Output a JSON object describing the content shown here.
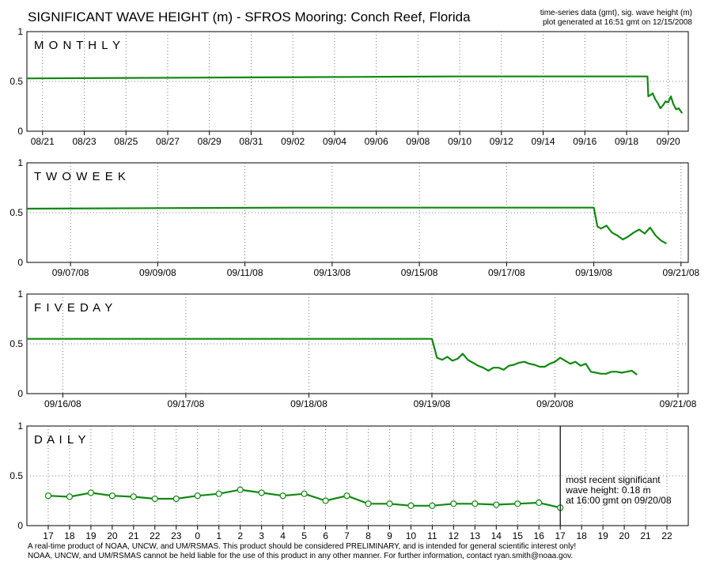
{
  "title": "SIGNIFICANT WAVE HEIGHT (m)  -  SFROS Mooring: Conch Reef, Florida",
  "meta": {
    "line1": "time-series data (gmt), sig. wave height (m)",
    "line2": "plot generated at 16:51 gmt on 12/15/2008"
  },
  "footer": {
    "line1": "A real-time product of NOAA, UNCW, and UM/RSMAS. This product should be considered PRELIMINARY, and is intended for general scientific interest only!",
    "line2": "NOAA, UNCW, and UM/RSMAS cannot be held liable for the use of this product in any other manner.  For further information, contact ryan.smith@noaa.gov."
  },
  "colors": {
    "series": "#118811",
    "grid": "#555555",
    "axis": "#000000"
  },
  "chart_data": [
    {
      "type": "line",
      "label": "MONTHLY",
      "ylim": [
        0,
        1
      ],
      "yticks": [
        0,
        0.5,
        1
      ],
      "xlim": [
        "08/20/08 06:00",
        "09/20/08 23:00"
      ],
      "xtick_labels": [
        "08/21",
        "08/23",
        "08/25",
        "08/27",
        "08/29",
        "08/31",
        "09/02",
        "09/04",
        "09/06",
        "09/08",
        "09/10",
        "09/12",
        "09/14",
        "09/16",
        "09/18",
        "09/20"
      ],
      "grid": true,
      "x": [
        "08/20/08 06:00",
        "08/25/08 00:00",
        "08/30/08 00:00",
        "09/05/08 00:00",
        "09/10/08 00:00",
        "09/15/08 00:00",
        "09/19/08 00:00",
        "09/19/08 01:00",
        "09/19/08 03:00",
        "09/19/08 06:00",
        "09/19/08 09:00",
        "09/19/08 12:00",
        "09/19/08 15:00",
        "09/19/08 18:00",
        "09/19/08 21:00",
        "09/20/08 00:00",
        "09/20/08 03:00",
        "09/20/08 06:00",
        "09/20/08 09:00",
        "09/20/08 12:00",
        "09/20/08 16:00"
      ],
      "y": [
        0.53,
        0.535,
        0.54,
        0.545,
        0.55,
        0.55,
        0.55,
        0.35,
        0.36,
        0.38,
        0.32,
        0.28,
        0.23,
        0.26,
        0.3,
        0.29,
        0.35,
        0.27,
        0.22,
        0.23,
        0.18
      ]
    },
    {
      "type": "line",
      "label": "TWO WEEK",
      "ylim": [
        0,
        1
      ],
      "yticks": [
        0,
        0.5,
        1
      ],
      "xlim": [
        "09/06/08 00:00",
        "09/21/08 04:00"
      ],
      "xtick_labels": [
        "09/07/08",
        "09/09/08",
        "09/11/08",
        "09/13/08",
        "09/15/08",
        "09/17/08",
        "09/19/08",
        "09/21/08"
      ],
      "grid": true,
      "x": [
        "09/06/08 00:00",
        "09/09/08 00:00",
        "09/12/08 00:00",
        "09/15/08 00:00",
        "09/18/08 00:00",
        "09/19/08 00:00",
        "09/19/08 02:00",
        "09/19/08 04:00",
        "09/19/08 07:00",
        "09/19/08 10:00",
        "09/19/08 13:00",
        "09/19/08 16:00",
        "09/19/08 19:00",
        "09/19/08 22:00",
        "09/20/08 01:00",
        "09/20/08 04:00",
        "09/20/08 07:00",
        "09/20/08 10:00",
        "09/20/08 13:00",
        "09/20/08 16:00"
      ],
      "y": [
        0.54,
        0.545,
        0.55,
        0.55,
        0.55,
        0.55,
        0.36,
        0.34,
        0.37,
        0.3,
        0.27,
        0.23,
        0.26,
        0.3,
        0.33,
        0.29,
        0.35,
        0.27,
        0.22,
        0.19
      ]
    },
    {
      "type": "line",
      "label": "FIVE DAY",
      "ylim": [
        0,
        1
      ],
      "yticks": [
        0,
        0.5,
        1
      ],
      "xlim": [
        "09/15/08 17:00",
        "09/21/08 02:00"
      ],
      "xtick_labels": [
        "09/16/08",
        "09/17/08",
        "09/18/08",
        "09/19/08",
        "09/20/08",
        "09/21/08"
      ],
      "grid": true,
      "x": [
        "09/15/08 17:00",
        "09/17/08 00:00",
        "09/18/08 00:00",
        "09/19/08 00:00",
        "09/19/08 01:00",
        "09/19/08 02:00",
        "09/19/08 03:00",
        "09/19/08 04:00",
        "09/19/08 05:00",
        "09/19/08 06:00",
        "09/19/08 07:00",
        "09/19/08 08:00",
        "09/19/08 09:00",
        "09/19/08 10:00",
        "09/19/08 11:00",
        "09/19/08 12:00",
        "09/19/08 13:00",
        "09/19/08 14:00",
        "09/19/08 15:00",
        "09/19/08 16:00",
        "09/19/08 17:00",
        "09/19/08 18:00",
        "09/19/08 19:00",
        "09/19/08 20:00",
        "09/19/08 21:00",
        "09/19/08 22:00",
        "09/19/08 23:00",
        "09/20/08 00:00",
        "09/20/08 01:00",
        "09/20/08 02:00",
        "09/20/08 03:00",
        "09/20/08 04:00",
        "09/20/08 05:00",
        "09/20/08 06:00",
        "09/20/08 07:00",
        "09/20/08 08:00",
        "09/20/08 09:00",
        "09/20/08 10:00",
        "09/20/08 11:00",
        "09/20/08 12:00",
        "09/20/08 13:00",
        "09/20/08 14:00",
        "09/20/08 15:00",
        "09/20/08 16:00"
      ],
      "y": [
        0.55,
        0.55,
        0.55,
        0.55,
        0.36,
        0.34,
        0.37,
        0.33,
        0.35,
        0.4,
        0.34,
        0.31,
        0.28,
        0.26,
        0.23,
        0.26,
        0.26,
        0.24,
        0.28,
        0.29,
        0.31,
        0.32,
        0.3,
        0.29,
        0.27,
        0.27,
        0.3,
        0.32,
        0.36,
        0.33,
        0.3,
        0.32,
        0.28,
        0.3,
        0.22,
        0.21,
        0.2,
        0.2,
        0.22,
        0.22,
        0.21,
        0.22,
        0.23,
        0.19
      ]
    },
    {
      "type": "line",
      "label": "DAILY",
      "ylim": [
        0,
        1
      ],
      "yticks": [
        0,
        0.5,
        1
      ],
      "xtick_labels": [
        "17",
        "18",
        "19",
        "20",
        "21",
        "22",
        "23",
        "0",
        "1",
        "2",
        "3",
        "4",
        "5",
        "6",
        "7",
        "8",
        "9",
        "10",
        "11",
        "12",
        "13",
        "14",
        "15",
        "16",
        "17",
        "18",
        "19",
        "20",
        "21",
        "22"
      ],
      "grid": true,
      "x_hours": [
        16,
        17,
        18,
        19,
        20,
        21,
        22,
        23,
        24,
        25,
        26,
        27,
        28,
        29,
        30,
        31,
        32,
        33,
        34,
        35,
        36,
        37,
        38,
        39,
        40
      ],
      "y": [
        0.3,
        0.29,
        0.33,
        0.3,
        0.29,
        0.27,
        0.27,
        0.3,
        0.32,
        0.36,
        0.33,
        0.3,
        0.32,
        0.25,
        0.3,
        0.22,
        0.22,
        0.2,
        0.2,
        0.22,
        0.22,
        0.21,
        0.22,
        0.23,
        0.18
      ],
      "marker": "circle",
      "current_marker_hour": 40,
      "annotation": [
        "most recent significant",
        "wave height: 0.18 m",
        "at 16:00 gmt on 09/20/08"
      ]
    }
  ]
}
